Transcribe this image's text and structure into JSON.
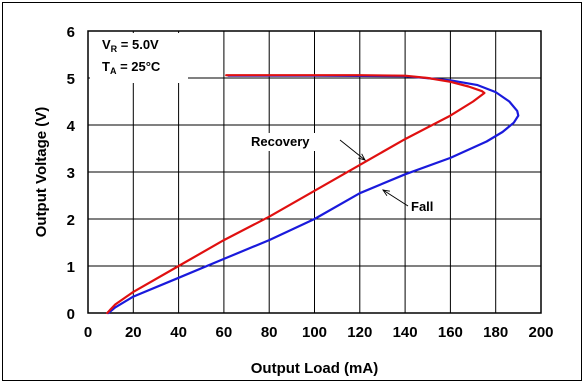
{
  "chart_data": {
    "type": "line",
    "xlabel": "Output Load (mA)",
    "ylabel": "Output Voltage (V)",
    "xlim": [
      0,
      200
    ],
    "ylim": [
      0,
      6
    ],
    "x_ticks": [
      "0",
      "20",
      "40",
      "60",
      "80",
      "100",
      "120",
      "140",
      "160",
      "180",
      "200"
    ],
    "y_ticks": [
      "0",
      "1",
      "2",
      "3",
      "4",
      "5",
      "6"
    ],
    "grid": true,
    "conditions": [
      {
        "main": "V",
        "sub": "R",
        "rest": " = 5.0V"
      },
      {
        "main": "T",
        "sub": "A",
        "rest": " = 25°C"
      }
    ],
    "series": [
      {
        "name": "Fall",
        "color": "#1a1adc",
        "x": [
          62,
          100,
          140,
          160,
          172,
          180,
          186,
          189.5,
          190,
          188,
          183,
          176,
          160,
          140,
          120,
          100,
          80,
          60,
          40,
          20,
          12,
          9
        ],
        "y": [
          5.05,
          5.05,
          5.04,
          4.95,
          4.85,
          4.7,
          4.5,
          4.3,
          4.2,
          4.05,
          3.85,
          3.65,
          3.3,
          2.95,
          2.55,
          2.0,
          1.55,
          1.15,
          0.75,
          0.35,
          0.12,
          0.0
        ]
      },
      {
        "name": "Recovery",
        "color": "#e01010",
        "x": [
          61,
          80,
          100,
          120,
          140,
          150,
          160,
          168,
          174,
          175,
          170,
          160,
          140,
          120,
          100,
          80,
          60,
          40,
          20,
          12,
          10,
          8.5
        ],
        "y": [
          5.06,
          5.06,
          5.06,
          5.06,
          5.05,
          5.0,
          4.92,
          4.82,
          4.72,
          4.68,
          4.5,
          4.2,
          3.7,
          3.15,
          2.6,
          2.05,
          1.55,
          1.0,
          0.45,
          0.18,
          0.08,
          0.0
        ]
      }
    ],
    "annotations": [
      {
        "text": "Recovery",
        "series": "Recovery"
      },
      {
        "text": "Fall",
        "series": "Fall"
      }
    ]
  }
}
